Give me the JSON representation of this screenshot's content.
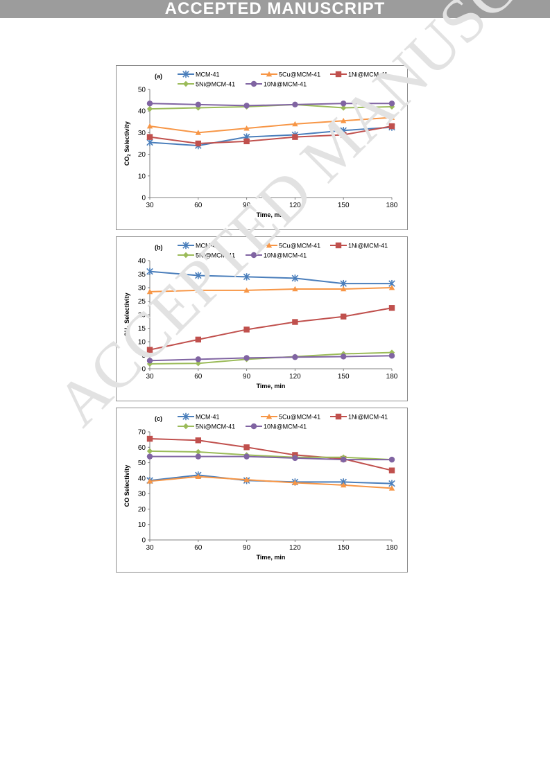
{
  "header": {
    "banner": "ACCEPTED MANUSCRIPT"
  },
  "watermark": "ACCEPTED MANUSCRIPT",
  "chart_data": [
    {
      "type": "line",
      "panel_label": "(a)",
      "xlabel": "Time, min",
      "ylabel_main": "CO",
      "ylabel_sub": "2",
      "ylabel_rest": " Selectivity",
      "x": [
        30,
        60,
        90,
        120,
        150,
        180
      ],
      "xlim": [
        30,
        180
      ],
      "ylim": [
        0,
        50
      ],
      "yticks": [
        0,
        10,
        20,
        30,
        40,
        50
      ],
      "series": [
        {
          "name": "MCM-41",
          "color": "#4a7ebb",
          "marker": "star",
          "values": [
            25.5,
            24,
            28,
            29,
            31,
            32.5
          ]
        },
        {
          "name": "5Cu@MCM-41",
          "color": "#f79646",
          "marker": "triangle",
          "values": [
            33,
            30,
            32,
            34,
            35.5,
            37
          ]
        },
        {
          "name": "1Ni@MCM-41",
          "color": "#c0504d",
          "marker": "square",
          "values": [
            28,
            25,
            26,
            28,
            29,
            33
          ]
        },
        {
          "name": "5Ni@MCM-41",
          "color": "#9bbb59",
          "marker": "diamond",
          "values": [
            41,
            41.5,
            42,
            43,
            41.5,
            42
          ]
        },
        {
          "name": "10Ni@MCM-41",
          "color": "#8064a2",
          "marker": "circle",
          "values": [
            43.5,
            43,
            42.5,
            43,
            43.5,
            43.5
          ]
        }
      ]
    },
    {
      "type": "line",
      "panel_label": "(b)",
      "xlabel": "Time, min",
      "ylabel_main": "CH",
      "ylabel_sub": "4",
      "ylabel_rest": " Selectivity",
      "x": [
        30,
        60,
        90,
        120,
        150,
        180
      ],
      "xlim": [
        30,
        180
      ],
      "ylim": [
        0,
        40
      ],
      "yticks": [
        0,
        5,
        10,
        15,
        20,
        25,
        30,
        35,
        40
      ],
      "series": [
        {
          "name": "MCM-41",
          "color": "#4a7ebb",
          "marker": "star",
          "values": [
            36,
            34.5,
            34,
            33.5,
            31.5,
            31.5
          ]
        },
        {
          "name": "5Cu@MCM-41",
          "color": "#f79646",
          "marker": "triangle",
          "values": [
            28.5,
            29,
            29,
            29.5,
            29.5,
            30
          ]
        },
        {
          "name": "1Ni@MCM-41",
          "color": "#c0504d",
          "marker": "square",
          "values": [
            7,
            10.8,
            14.5,
            17.3,
            19.3,
            22.5
          ]
        },
        {
          "name": "5Ni@MCM-41",
          "color": "#9bbb59",
          "marker": "diamond",
          "values": [
            1.8,
            2,
            3.5,
            4.5,
            5.5,
            6
          ]
        },
        {
          "name": "10Ni@MCM-41",
          "color": "#8064a2",
          "marker": "circle",
          "values": [
            3,
            3.5,
            4,
            4.3,
            4.5,
            4.8
          ]
        }
      ]
    },
    {
      "type": "line",
      "panel_label": "(c)",
      "xlabel": "Time, min",
      "ylabel_main": "CO Selectivity",
      "ylabel_sub": "",
      "ylabel_rest": "",
      "x": [
        30,
        60,
        90,
        120,
        150,
        180
      ],
      "xlim": [
        30,
        180
      ],
      "ylim": [
        0,
        70
      ],
      "yticks": [
        0,
        10,
        20,
        30,
        40,
        50,
        60,
        70
      ],
      "series": [
        {
          "name": "MCM-41",
          "color": "#4a7ebb",
          "marker": "star",
          "values": [
            38.5,
            42,
            38.5,
            37.5,
            37.5,
            36.5
          ]
        },
        {
          "name": "5Cu@MCM-41",
          "color": "#f79646",
          "marker": "triangle",
          "values": [
            38,
            41,
            39,
            37,
            35.5,
            33.5
          ]
        },
        {
          "name": "1Ni@MCM-41",
          "color": "#c0504d",
          "marker": "square",
          "values": [
            65.5,
            64.5,
            60,
            55,
            52.5,
            45
          ]
        },
        {
          "name": "5Ni@MCM-41",
          "color": "#9bbb59",
          "marker": "diamond",
          "values": [
            57.5,
            57,
            55,
            53.5,
            53.5,
            52
          ]
        },
        {
          "name": "10Ni@MCM-41",
          "color": "#8064a2",
          "marker": "circle",
          "values": [
            54,
            54,
            54,
            53,
            52,
            52
          ]
        }
      ]
    }
  ]
}
